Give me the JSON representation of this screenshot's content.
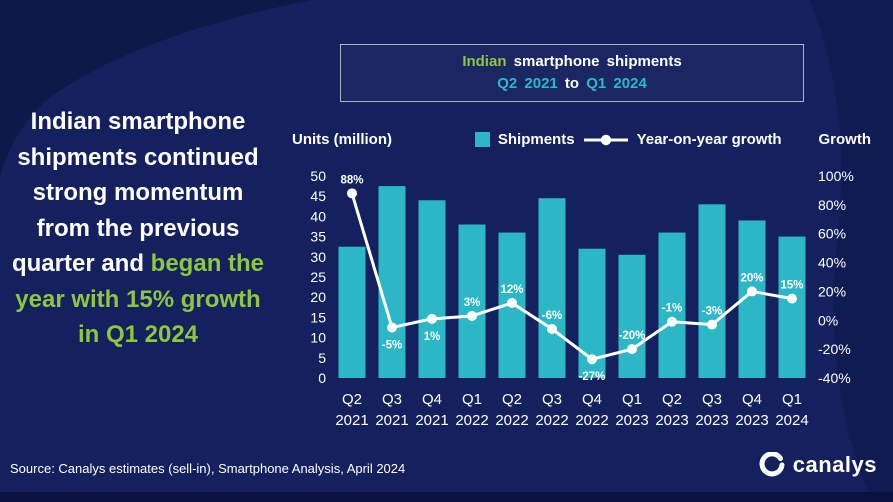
{
  "page": {
    "headline_white": "Indian smartphone shipments continued strong momentum from the previous quarter and ",
    "headline_green": "began the year with 15% growth in Q1 2024",
    "source": "Source: Canalys estimates (sell-in), Smartphone Analysis, April 2024",
    "brand": "canalys"
  },
  "chart_title": {
    "line1_green": "Indian",
    "line1_rest": " smartphone shipments",
    "range_start": "Q2 2021",
    "range_mid": " to ",
    "range_end": "Q1 2024"
  },
  "legend": {
    "shipments": "Shipments",
    "growth": "Year-on-year growth"
  },
  "colors": {
    "background": "#14215e",
    "decor": "#0c1847",
    "bar": "#2bb7c6",
    "green": "#8dc63f",
    "teal": "#2db8c5",
    "line": "#ffffff"
  },
  "chart_data": {
    "type": "combo",
    "title": "Indian smartphone shipments Q2 2021 to Q1 2024",
    "categories": [
      "Q2 2021",
      "Q3 2021",
      "Q4 2021",
      "Q1 2022",
      "Q2 2022",
      "Q3 2022",
      "Q4 2022",
      "Q1 2023",
      "Q2 2023",
      "Q3 2023",
      "Q4 2023",
      "Q1 2024"
    ],
    "series": [
      {
        "name": "Shipments",
        "type": "bar",
        "unit": "million units",
        "values": [
          32.5,
          47.5,
          44,
          38,
          36,
          44.5,
          32,
          30.5,
          36,
          43,
          39,
          35
        ]
      },
      {
        "name": "Year-on-year growth",
        "type": "line",
        "unit": "%",
        "values": [
          88,
          -5,
          1,
          3,
          12,
          -6,
          -27,
          -20,
          -1,
          -3,
          20,
          15
        ],
        "point_labels": [
          "88%",
          "-5%",
          "1%",
          "3%",
          "12%",
          "-6%",
          "-27%",
          "-20%",
          "-1%",
          "-3%",
          "20%",
          "15%"
        ],
        "label_side": [
          "above",
          "below",
          "below",
          "above",
          "above",
          "above",
          "below",
          "above",
          "above",
          "above",
          "above",
          "above"
        ]
      }
    ],
    "left_axis": {
      "label": "Units (million)",
      "min": 0,
      "max": 50,
      "step": 5
    },
    "right_axis": {
      "label": "Growth",
      "min": -40,
      "max": 100,
      "step": 20,
      "suffix": "%"
    },
    "grid": false,
    "legend_position": "top"
  }
}
